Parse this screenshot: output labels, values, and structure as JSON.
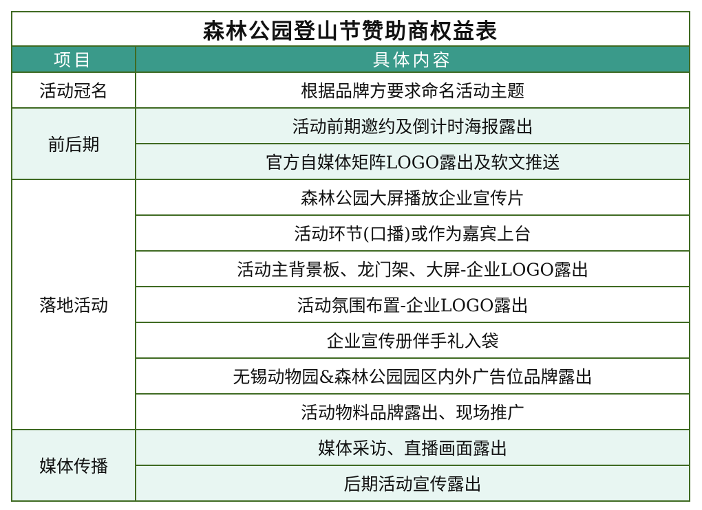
{
  "title": "森林公园登山节赞助商权益表",
  "headers": {
    "item": "项目",
    "content": "具体内容"
  },
  "colors": {
    "border": "#3f6a22",
    "header_bg": "#3a9a8a",
    "light_row": "#e8f6f2"
  },
  "groups": [
    {
      "item": "活动冠名",
      "contents": [
        "根据品牌方要求命名活动主题"
      ]
    },
    {
      "item": "前后期",
      "contents": [
        "活动前期邀约及倒计时海报露出",
        "官方自媒体矩阵LOGO露出及软文推送"
      ]
    },
    {
      "item": "落地活动",
      "contents": [
        "森林公园大屏播放企业宣传片",
        "活动环节(口播)或作为嘉宾上台",
        "活动主背景板、龙门架、大屏-企业LOGO露出",
        "活动氛围布置-企业LOGO露出",
        "企业宣传册伴手礼入袋",
        "无锡动物园&森林公园园区内外广告位品牌露出",
        "活动物料品牌露出、现场推广"
      ]
    },
    {
      "item": "媒体传播",
      "contents": [
        "媒体采访、直播画面露出",
        "后期活动宣传露出"
      ]
    }
  ]
}
